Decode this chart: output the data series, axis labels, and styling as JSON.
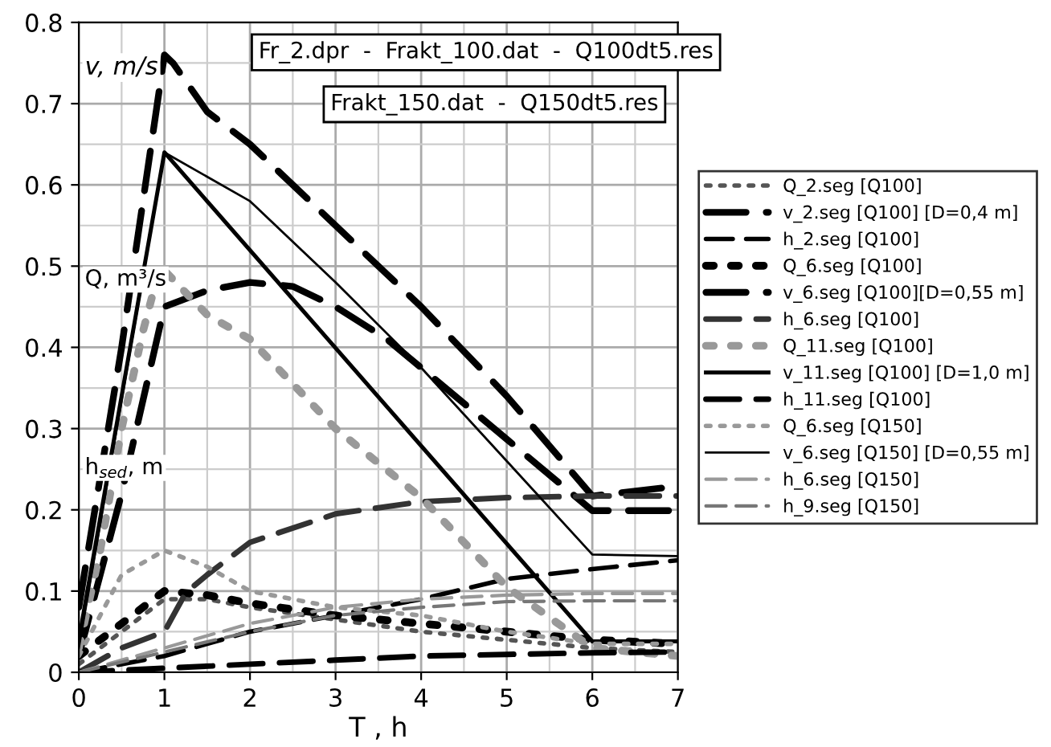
{
  "chart_data": {
    "type": "line",
    "xlabel": "T , h",
    "ylabel": "v, m/s",
    "annotations": [
      "Q, m³/s",
      "h$_{sed}$, m",
      "Fr_2.dpr  -  Frakt_100.dat  -  Q100dt5.res",
      "Frakt_150.dat  -  Q150dt5.res"
    ],
    "xlim": [
      0,
      7
    ],
    "ylim": [
      0,
      0.8
    ],
    "xticks": [
      0,
      1,
      2,
      3,
      4,
      5,
      6,
      7
    ],
    "yticks": [
      0,
      0.1,
      0.2,
      0.3,
      0.4,
      0.5,
      0.6,
      0.7,
      0.8
    ],
    "grid": true,
    "legend": "right",
    "series": [
      {
        "name": "Q_2.seg [Q100]",
        "color": "#555555",
        "line_style": "dotted",
        "x": [
          0,
          0.5,
          1,
          1.5,
          2,
          3,
          4,
          5,
          6,
          7
        ],
        "values": [
          0.01,
          0.05,
          0.09,
          0.09,
          0.08,
          0.065,
          0.05,
          0.04,
          0.03,
          0.025
        ]
      },
      {
        "name": "v_2.seg [Q100] [D=0,4 m]",
        "color": "#000000",
        "line_style": "dashed",
        "x": [
          0,
          0.5,
          1,
          1.1,
          1.5,
          2,
          3,
          4,
          5,
          6,
          7
        ],
        "values": [
          0.08,
          0.4,
          0.76,
          0.75,
          0.69,
          0.65,
          0.55,
          0.45,
          0.34,
          0.217,
          0.229
        ]
      },
      {
        "name": "h_2.seg [Q100]",
        "color": "#000000",
        "line_style": "dashed",
        "x": [
          0,
          1,
          2,
          3,
          4,
          5,
          6,
          7
        ],
        "values": [
          0,
          0.02,
          0.05,
          0.07,
          0.09,
          0.115,
          0.127,
          0.138
        ]
      },
      {
        "name": "Q_6.seg [Q100]",
        "color": "#000000",
        "line_style": "dotted",
        "x": [
          0,
          0.5,
          1,
          1.5,
          2,
          3,
          4,
          5,
          6,
          7
        ],
        "values": [
          0.02,
          0.06,
          0.1,
          0.095,
          0.085,
          0.07,
          0.06,
          0.05,
          0.04,
          0.035
        ]
      },
      {
        "name": "v_6.seg [Q100][D=0,55 m]",
        "color": "#000000",
        "line_style": "dashed",
        "x": [
          0,
          0.5,
          1,
          1.5,
          2,
          2.5,
          3,
          3.6,
          4,
          5,
          6,
          7
        ],
        "values": [
          0.02,
          0.22,
          0.45,
          0.47,
          0.48,
          0.475,
          0.45,
          0.41,
          0.375,
          0.287,
          0.199,
          0.199
        ]
      },
      {
        "name": "h_6.seg [Q100]",
        "color": "#333333",
        "line_style": "dashed",
        "x": [
          0,
          0.5,
          1,
          1.25,
          1.5,
          2,
          3,
          4,
          5,
          6,
          7
        ],
        "values": [
          0,
          0.03,
          0.05,
          0.098,
          0.12,
          0.16,
          0.195,
          0.21,
          0.215,
          0.217,
          0.217
        ]
      },
      {
        "name": "Q_11.seg [Q100]",
        "color": "#999999",
        "line_style": "dotted",
        "x": [
          0,
          0.25,
          0.5,
          0.75,
          0.95,
          1.5,
          2,
          3,
          4,
          5,
          6,
          7
        ],
        "values": [
          0.03,
          0.15,
          0.3,
          0.42,
          0.5,
          0.44,
          0.41,
          0.3,
          0.215,
          0.105,
          0.03,
          0.02
        ]
      },
      {
        "name": "v_11.seg [Q100] [D=1,0 m]",
        "color": "#000000",
        "line_style": "solid",
        "x": [
          0,
          1,
          6,
          7
        ],
        "values": [
          0.04,
          0.64,
          0.038,
          0.038
        ]
      },
      {
        "name": "h_11.seg [Q100]",
        "color": "#000000",
        "line_style": "dashed",
        "x": [
          0,
          1,
          2,
          3,
          4,
          5,
          6,
          7
        ],
        "values": [
          0,
          0.005,
          0.01,
          0.015,
          0.02,
          0.022,
          0.024,
          0.025
        ]
      },
      {
        "name": "Q_6.seg [Q150]",
        "color": "#999999",
        "line_style": "dotted",
        "x": [
          0,
          0.5,
          1,
          1.5,
          2,
          3,
          4,
          5,
          6,
          7
        ],
        "values": [
          0.02,
          0.12,
          0.15,
          0.13,
          0.1,
          0.08,
          0.07,
          0.05,
          0.035,
          0.035
        ]
      },
      {
        "name": "v_6.seg [Q150] [D=0,55 m]",
        "color": "#000000",
        "line_style": "solid",
        "x": [
          0,
          1,
          2,
          3,
          4,
          5,
          6,
          7
        ],
        "values": [
          0.03,
          0.64,
          0.58,
          0.48,
          0.375,
          0.26,
          0.145,
          0.143
        ]
      },
      {
        "name": "h_6.seg [Q150]",
        "color": "#999999",
        "line_style": "dashed",
        "x": [
          0,
          1,
          2,
          3,
          4,
          5,
          6,
          7
        ],
        "values": [
          0,
          0.03,
          0.06,
          0.08,
          0.09,
          0.095,
          0.097,
          0.097
        ]
      },
      {
        "name": "h_9.seg [Q150]",
        "color": "#777777",
        "line_style": "dashed",
        "x": [
          0,
          1,
          2,
          3,
          4,
          5,
          6,
          7
        ],
        "values": [
          0,
          0.025,
          0.05,
          0.07,
          0.08,
          0.087,
          0.088,
          0.088
        ]
      }
    ]
  }
}
